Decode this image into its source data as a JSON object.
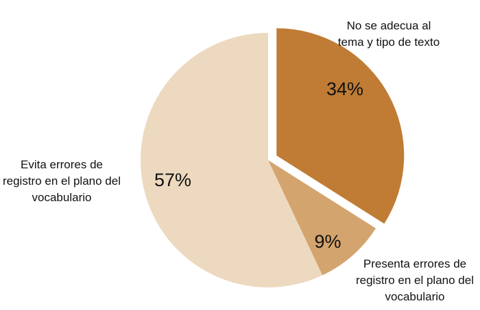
{
  "chart_data": {
    "type": "pie",
    "categories": [
      "No se adecua al tema y tipo de texto",
      "Presenta errores de registro en el plano del vocabulario",
      "Evita errores de registro en el plano del vocabulario"
    ],
    "values": [
      34,
      9,
      57
    ],
    "value_labels": [
      "34%",
      "9%",
      "57%"
    ],
    "colors": [
      "#c07c35",
      "#d4a46e",
      "#ecd9bf"
    ]
  }
}
